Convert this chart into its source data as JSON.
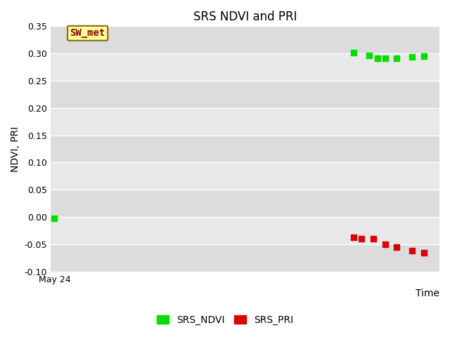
{
  "title": "SRS NDVI and PRI",
  "ylabel": "NDVI, PRI",
  "xlabel": "Time",
  "xtick_label": "May 24",
  "ylim": [
    -0.1,
    0.35
  ],
  "yticks": [
    -0.1,
    -0.05,
    0.0,
    0.05,
    0.1,
    0.15,
    0.2,
    0.25,
    0.3,
    0.35
  ],
  "annotation_text": "SW_met",
  "annotation_bg": "#FFFF99",
  "annotation_fg": "#8B0000",
  "annotation_edge": "#8B6914",
  "ndvi_color": "#00DD00",
  "pri_color": "#DD0000",
  "ndvi_x": [
    1,
    78,
    82,
    84,
    86,
    89,
    93,
    96
  ],
  "ndvi_y": [
    -0.003,
    0.301,
    0.296,
    0.291,
    0.291,
    0.291,
    0.294,
    0.295
  ],
  "pri_x": [
    78,
    80,
    83,
    86,
    89,
    93,
    96
  ],
  "pri_y": [
    -0.037,
    -0.04,
    -0.04,
    -0.05,
    -0.055,
    -0.062,
    -0.065
  ],
  "marker_size": 30,
  "bg_color": "#E8E8E8",
  "band_color_light": "#EBEBEB",
  "band_color_dark": "#D8D8D8",
  "grid_color": "#FFFFFF",
  "title_fontsize": 12,
  "label_fontsize": 10,
  "tick_fontsize": 9,
  "legend_fontsize": 10
}
